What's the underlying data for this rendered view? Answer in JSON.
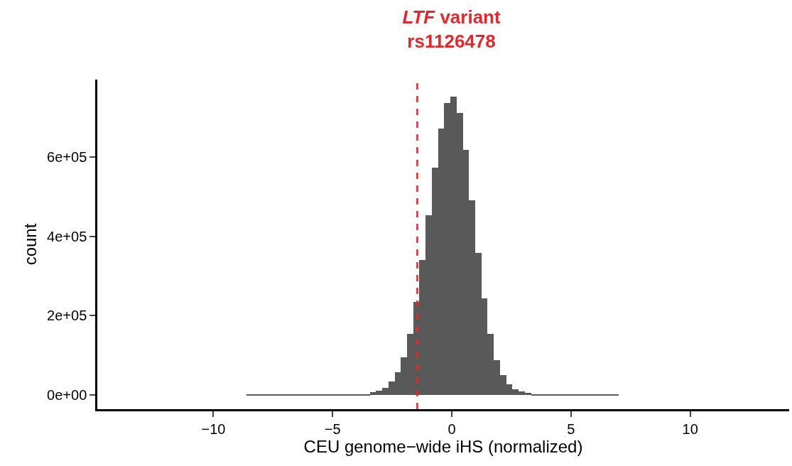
{
  "chart_data": {
    "type": "histogram",
    "title": "LTF variant\nrs1126478",
    "xlabel": "CEU genome−wide iHS (normalized)",
    "ylabel": "count",
    "bins": [
      -8.6,
      -4.22,
      -3.96,
      -3.7,
      -3.44,
      -3.18,
      -2.92,
      -2.66,
      -2.4,
      -2.14,
      -1.88,
      -1.62,
      -1.36,
      -1.1,
      -0.84,
      -0.58,
      -0.32,
      -0.06,
      0.2,
      0.46,
      0.72,
      0.98,
      1.24,
      1.5,
      1.76,
      2.02,
      2.28,
      2.54,
      2.8,
      3.06,
      3.32,
      3.58,
      3.84,
      7.0
    ],
    "values": [
      1000,
      1000,
      2000,
      3000,
      8000,
      11000,
      18000,
      34000,
      57000,
      96000,
      154000,
      234000,
      340000,
      453000,
      573000,
      671000,
      736000,
      752000,
      710000,
      618000,
      490000,
      359000,
      244000,
      154000,
      88000,
      50000,
      28000,
      15000,
      9000,
      5000,
      2000,
      2000,
      1000
    ],
    "color": "#595959",
    "xlim": [
      -14.87,
      14.15
    ],
    "xticks": [
      {
        "value": -10,
        "label": "−10"
      },
      {
        "value": -5,
        "label": "−5"
      },
      0,
      5,
      10
    ],
    "ylim": [
      -35400,
      794700
    ],
    "yticks": [
      {
        "value": 0,
        "label": "0e+00"
      },
      {
        "value": 200000,
        "label": "2e+05"
      },
      {
        "value": 400000,
        "label": "4e+05"
      },
      {
        "value": 600000,
        "label": "6e+05"
      }
    ],
    "ref_lines": [
      {
        "axis": "x",
        "value": -1.45,
        "color": "#e8262a",
        "line_style": "dashed"
      }
    ]
  }
}
